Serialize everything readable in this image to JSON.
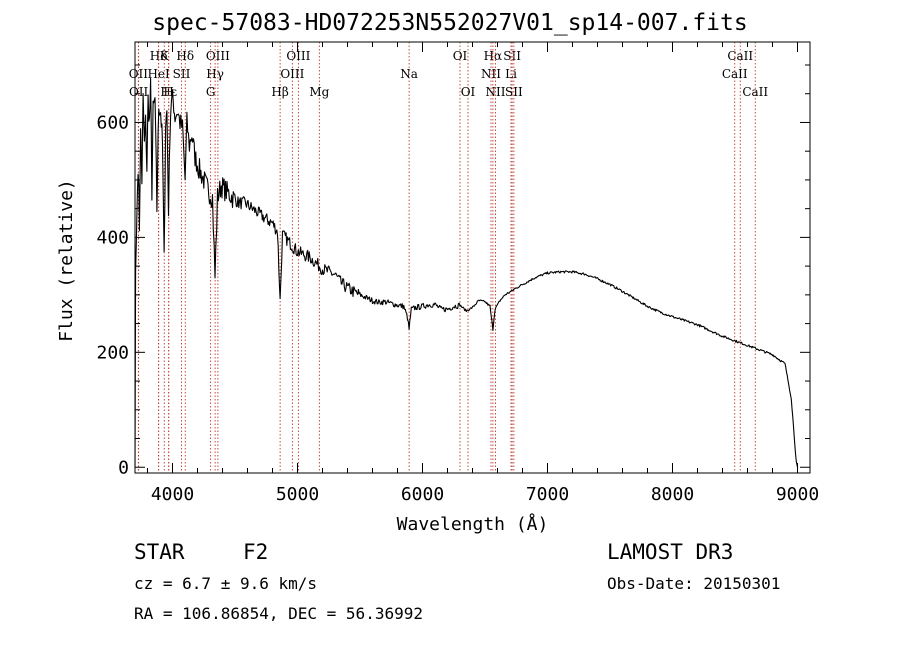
{
  "chart_data": {
    "type": "line",
    "title": "spec-57083-HD072253N552027V01_sp14-007.fits",
    "xlabel": "Wavelength (Å)",
    "ylabel": "Flux (relative)",
    "xlim": [
      3700,
      9100
    ],
    "ylim": [
      -10,
      740
    ],
    "x_ticks": [
      4000,
      5000,
      6000,
      7000,
      8000,
      9000
    ],
    "y_ticks": [
      0,
      200,
      400,
      600
    ],
    "x_tick_labels": [
      "4000",
      "5000",
      "6000",
      "7000",
      "8000",
      "9000"
    ],
    "y_tick_labels": [
      "0",
      "200",
      "400",
      "600"
    ],
    "series": [
      {
        "name": "flux",
        "x": [
          3700,
          3705,
          3715,
          3725,
          3735,
          3745,
          3755,
          3765,
          3775,
          3785,
          3795,
          3805,
          3815,
          3825,
          3835,
          3845,
          3860,
          3875,
          3890,
          3905,
          3920,
          3933,
          3945,
          3955,
          3968,
          3980,
          3990,
          4005,
          4020,
          4040,
          4060,
          4080,
          4101,
          4115,
          4135,
          4155,
          4180,
          4210,
          4250,
          4290,
          4320,
          4340,
          4360,
          4390,
          4430,
          4480,
          4530,
          4580,
          4640,
          4700,
          4760,
          4800,
          4840,
          4861,
          4880,
          4920,
          4960,
          5000,
          5050,
          5100,
          5150,
          5200,
          5250,
          5300,
          5350,
          5400,
          5450,
          5500,
          5550,
          5600,
          5650,
          5700,
          5750,
          5800,
          5850,
          5880,
          5893,
          5910,
          5950,
          6000,
          6050,
          6100,
          6150,
          6200,
          6250,
          6300,
          6350,
          6400,
          6450,
          6500,
          6540,
          6563,
          6580,
          6620,
          6660,
          6700,
          6750,
          6800,
          6900,
          7000,
          7100,
          7200,
          7300,
          7400,
          7500,
          7600,
          7700,
          7800,
          7900,
          8000,
          8100,
          8200,
          8300,
          8400,
          8500,
          8600,
          8700,
          8800,
          8900,
          8950,
          8990,
          9000,
          9005
        ],
        "y": [
          0,
          340,
          440,
          530,
          420,
          580,
          500,
          640,
          560,
          600,
          520,
          640,
          600,
          660,
          480,
          620,
          640,
          450,
          630,
          620,
          560,
          360,
          600,
          620,
          450,
          590,
          640,
          640,
          610,
          620,
          600,
          590,
          500,
          600,
          560,
          580,
          540,
          520,
          500,
          480,
          470,
          330,
          470,
          490,
          480,
          470,
          460,
          460,
          450,
          440,
          430,
          425,
          410,
          290,
          405,
          395,
          385,
          375,
          370,
          365,
          355,
          345,
          340,
          335,
          320,
          312,
          305,
          300,
          295,
          290,
          287,
          288,
          285,
          282,
          280,
          260,
          240,
          275,
          278,
          280,
          283,
          283,
          275,
          275,
          280,
          282,
          272,
          278,
          290,
          288,
          280,
          240,
          275,
          290,
          300,
          305,
          312,
          318,
          330,
          338,
          340,
          340,
          336,
          328,
          318,
          306,
          293,
          280,
          270,
          262,
          255,
          248,
          238,
          228,
          220,
          212,
          204,
          196,
          180,
          120,
          10,
          0,
          0
        ]
      }
    ],
    "spectral_lines": [
      {
        "name": "Hδ",
        "x": 3889,
        "row": 0
      },
      {
        "name": "OII",
        "x": 3727,
        "row": 1
      },
      {
        "name": "OII",
        "x": 3729,
        "row": 2
      },
      {
        "name": "HeI",
        "x": 3889,
        "row": 1
      },
      {
        "name": "Hε",
        "x": 3970,
        "row": 2
      },
      {
        "name": "K",
        "x": 3934,
        "row": 0
      },
      {
        "name": "H",
        "x": 3969,
        "row": 2
      },
      {
        "name": "SII",
        "x": 4072,
        "row": 1
      },
      {
        "name": "Hδ",
        "x": 4102,
        "row": 0
      },
      {
        "name": "OIII",
        "x": 4363,
        "row": 0
      },
      {
        "name": "Hγ",
        "x": 4341,
        "row": 1
      },
      {
        "name": "G",
        "x": 4305,
        "row": 2
      },
      {
        "name": "Hβ",
        "x": 4861,
        "row": 2
      },
      {
        "name": "OIII",
        "x": 4959,
        "row": 1
      },
      {
        "name": "OIII",
        "x": 5007,
        "row": 0
      },
      {
        "name": "Mg",
        "x": 5175,
        "row": 2
      },
      {
        "name": "Na",
        "x": 5893,
        "row": 1
      },
      {
        "name": "OI",
        "x": 6300,
        "row": 0
      },
      {
        "name": "OI",
        "x": 6364,
        "row": 2
      },
      {
        "name": "Hα",
        "x": 6563,
        "row": 0
      },
      {
        "name": "NII",
        "x": 6548,
        "row": 1
      },
      {
        "name": "NII",
        "x": 6584,
        "row": 2
      },
      {
        "name": "SII",
        "x": 6717,
        "row": 0
      },
      {
        "name": "Li",
        "x": 6708,
        "row": 1
      },
      {
        "name": "SII",
        "x": 6731,
        "row": 2
      },
      {
        "name": "CaII",
        "x": 8542,
        "row": 0
      },
      {
        "name": "CaII",
        "x": 8498,
        "row": 1
      },
      {
        "name": "CaII",
        "x": 8662,
        "row": 2
      }
    ]
  },
  "info": {
    "object_type": "STAR",
    "subclass": "F2",
    "survey": "LAMOST DR3",
    "redshift": "cz = 6.7 ± 9.6 km/s",
    "obs_date": "Obs-Date: 20150301",
    "coords": "RA = 106.86854, DEC =  56.36992"
  }
}
